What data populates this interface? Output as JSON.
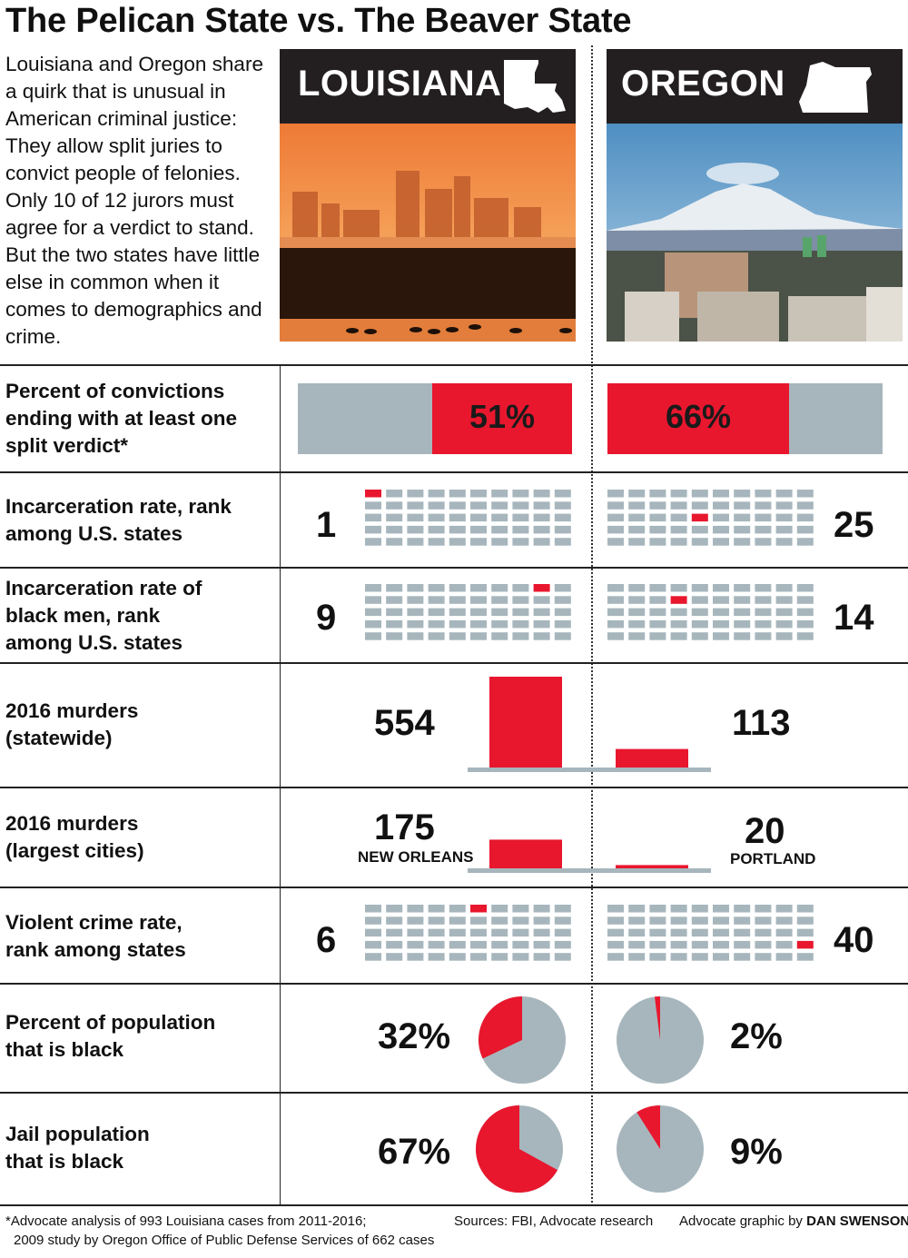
{
  "title": "The Pelican State vs. The Beaver State",
  "intro": "Louisiana and Oregon share a quirk that is unusual in American criminal justice: They allow split juries to convict people of felonies. Only 10 of 12 jurors must agree for a verdict to stand. But the two states have little else in common when it comes to demographics and crime.",
  "states": {
    "left": "LOUISIANA",
    "right": "OREGON"
  },
  "colors": {
    "highlight": "#e8172e",
    "neutral": "#a7b6bd",
    "dark": "#231f20"
  },
  "icons": {
    "left_map": "louisiana-state-outline-icon",
    "right_map": "oregon-state-outline-icon"
  },
  "chart_data": {
    "type": "table",
    "rows": [
      {
        "label": "Percent of convictions ending with at least one split verdict*",
        "kind": "bar",
        "louisiana": 51,
        "oregon": 66,
        "louisiana_text": "51%",
        "oregon_text": "66%"
      },
      {
        "label": "Incarceration rate, rank among U.S. states",
        "kind": "rank",
        "louisiana": 1,
        "oregon": 25,
        "louisiana_text": "1",
        "oregon_text": "25"
      },
      {
        "label": "Incarceration rate of black men, rank among U.S. states",
        "kind": "rank",
        "louisiana": 9,
        "oregon": 14,
        "louisiana_text": "9",
        "oregon_text": "14"
      },
      {
        "label": "2016 murders (statewide)",
        "kind": "column",
        "louisiana": 554,
        "oregon": 113,
        "louisiana_text": "554",
        "oregon_text": "113"
      },
      {
        "label": "2016 murders (largest cities)",
        "kind": "column",
        "louisiana": 175,
        "oregon": 20,
        "louisiana_text": "175",
        "oregon_text": "20",
        "louisiana_city": "NEW ORLEANS",
        "oregon_city": "PORTLAND"
      },
      {
        "label": "Violent crime rate, rank among states",
        "kind": "rank",
        "louisiana": 6,
        "oregon": 40,
        "louisiana_text": "6",
        "oregon_text": "40"
      },
      {
        "label": "Percent of population that is black",
        "kind": "pie",
        "louisiana": 32,
        "oregon": 2,
        "louisiana_text": "32%",
        "oregon_text": "2%"
      },
      {
        "label": "Jail population that is black",
        "kind": "pie",
        "louisiana": 67,
        "oregon": 9,
        "louisiana_text": "67%",
        "oregon_text": "9%"
      }
    ]
  },
  "footer": {
    "note_line1": "*Advocate analysis of 993 Louisiana cases from 2011-2016;",
    "note_line2": "2009 study by Oregon Office of Public Defense Services of 662 cases",
    "sources": "Sources: FBI, Advocate research",
    "credit_prefix": "Advocate graphic by ",
    "credit_name": "DAN SWENSON"
  }
}
